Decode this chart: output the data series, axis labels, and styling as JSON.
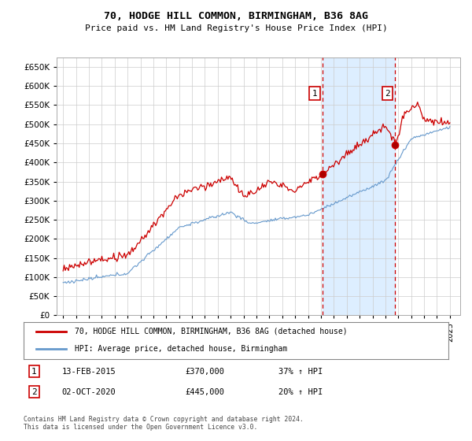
{
  "title": "70, HODGE HILL COMMON, BIRMINGHAM, B36 8AG",
  "subtitle": "Price paid vs. HM Land Registry's House Price Index (HPI)",
  "ylabel_ticks": [
    0,
    50000,
    100000,
    150000,
    200000,
    250000,
    300000,
    350000,
    400000,
    450000,
    500000,
    550000,
    600000,
    650000
  ],
  "ylim": [
    0,
    675000
  ],
  "sale1": {
    "date": "13-FEB-2015",
    "price": 370000,
    "pct": "37%",
    "x": 2015.12
  },
  "sale2": {
    "date": "02-OCT-2020",
    "price": 445000,
    "pct": "20%",
    "x": 2020.75
  },
  "line1_label": "70, HODGE HILL COMMON, BIRMINGHAM, B36 8AG (detached house)",
  "line2_label": "HPI: Average price, detached house, Birmingham",
  "footnote": "Contains HM Land Registry data © Crown copyright and database right 2024.\nThis data is licensed under the Open Government Licence v3.0.",
  "red_color": "#cc0000",
  "blue_color": "#6699cc",
  "grid_color": "#cccccc",
  "background_color": "#ffffff",
  "plot_bg_color": "#ffffff",
  "shade_color": "#ddeeff",
  "vline_color": "#cc0000"
}
